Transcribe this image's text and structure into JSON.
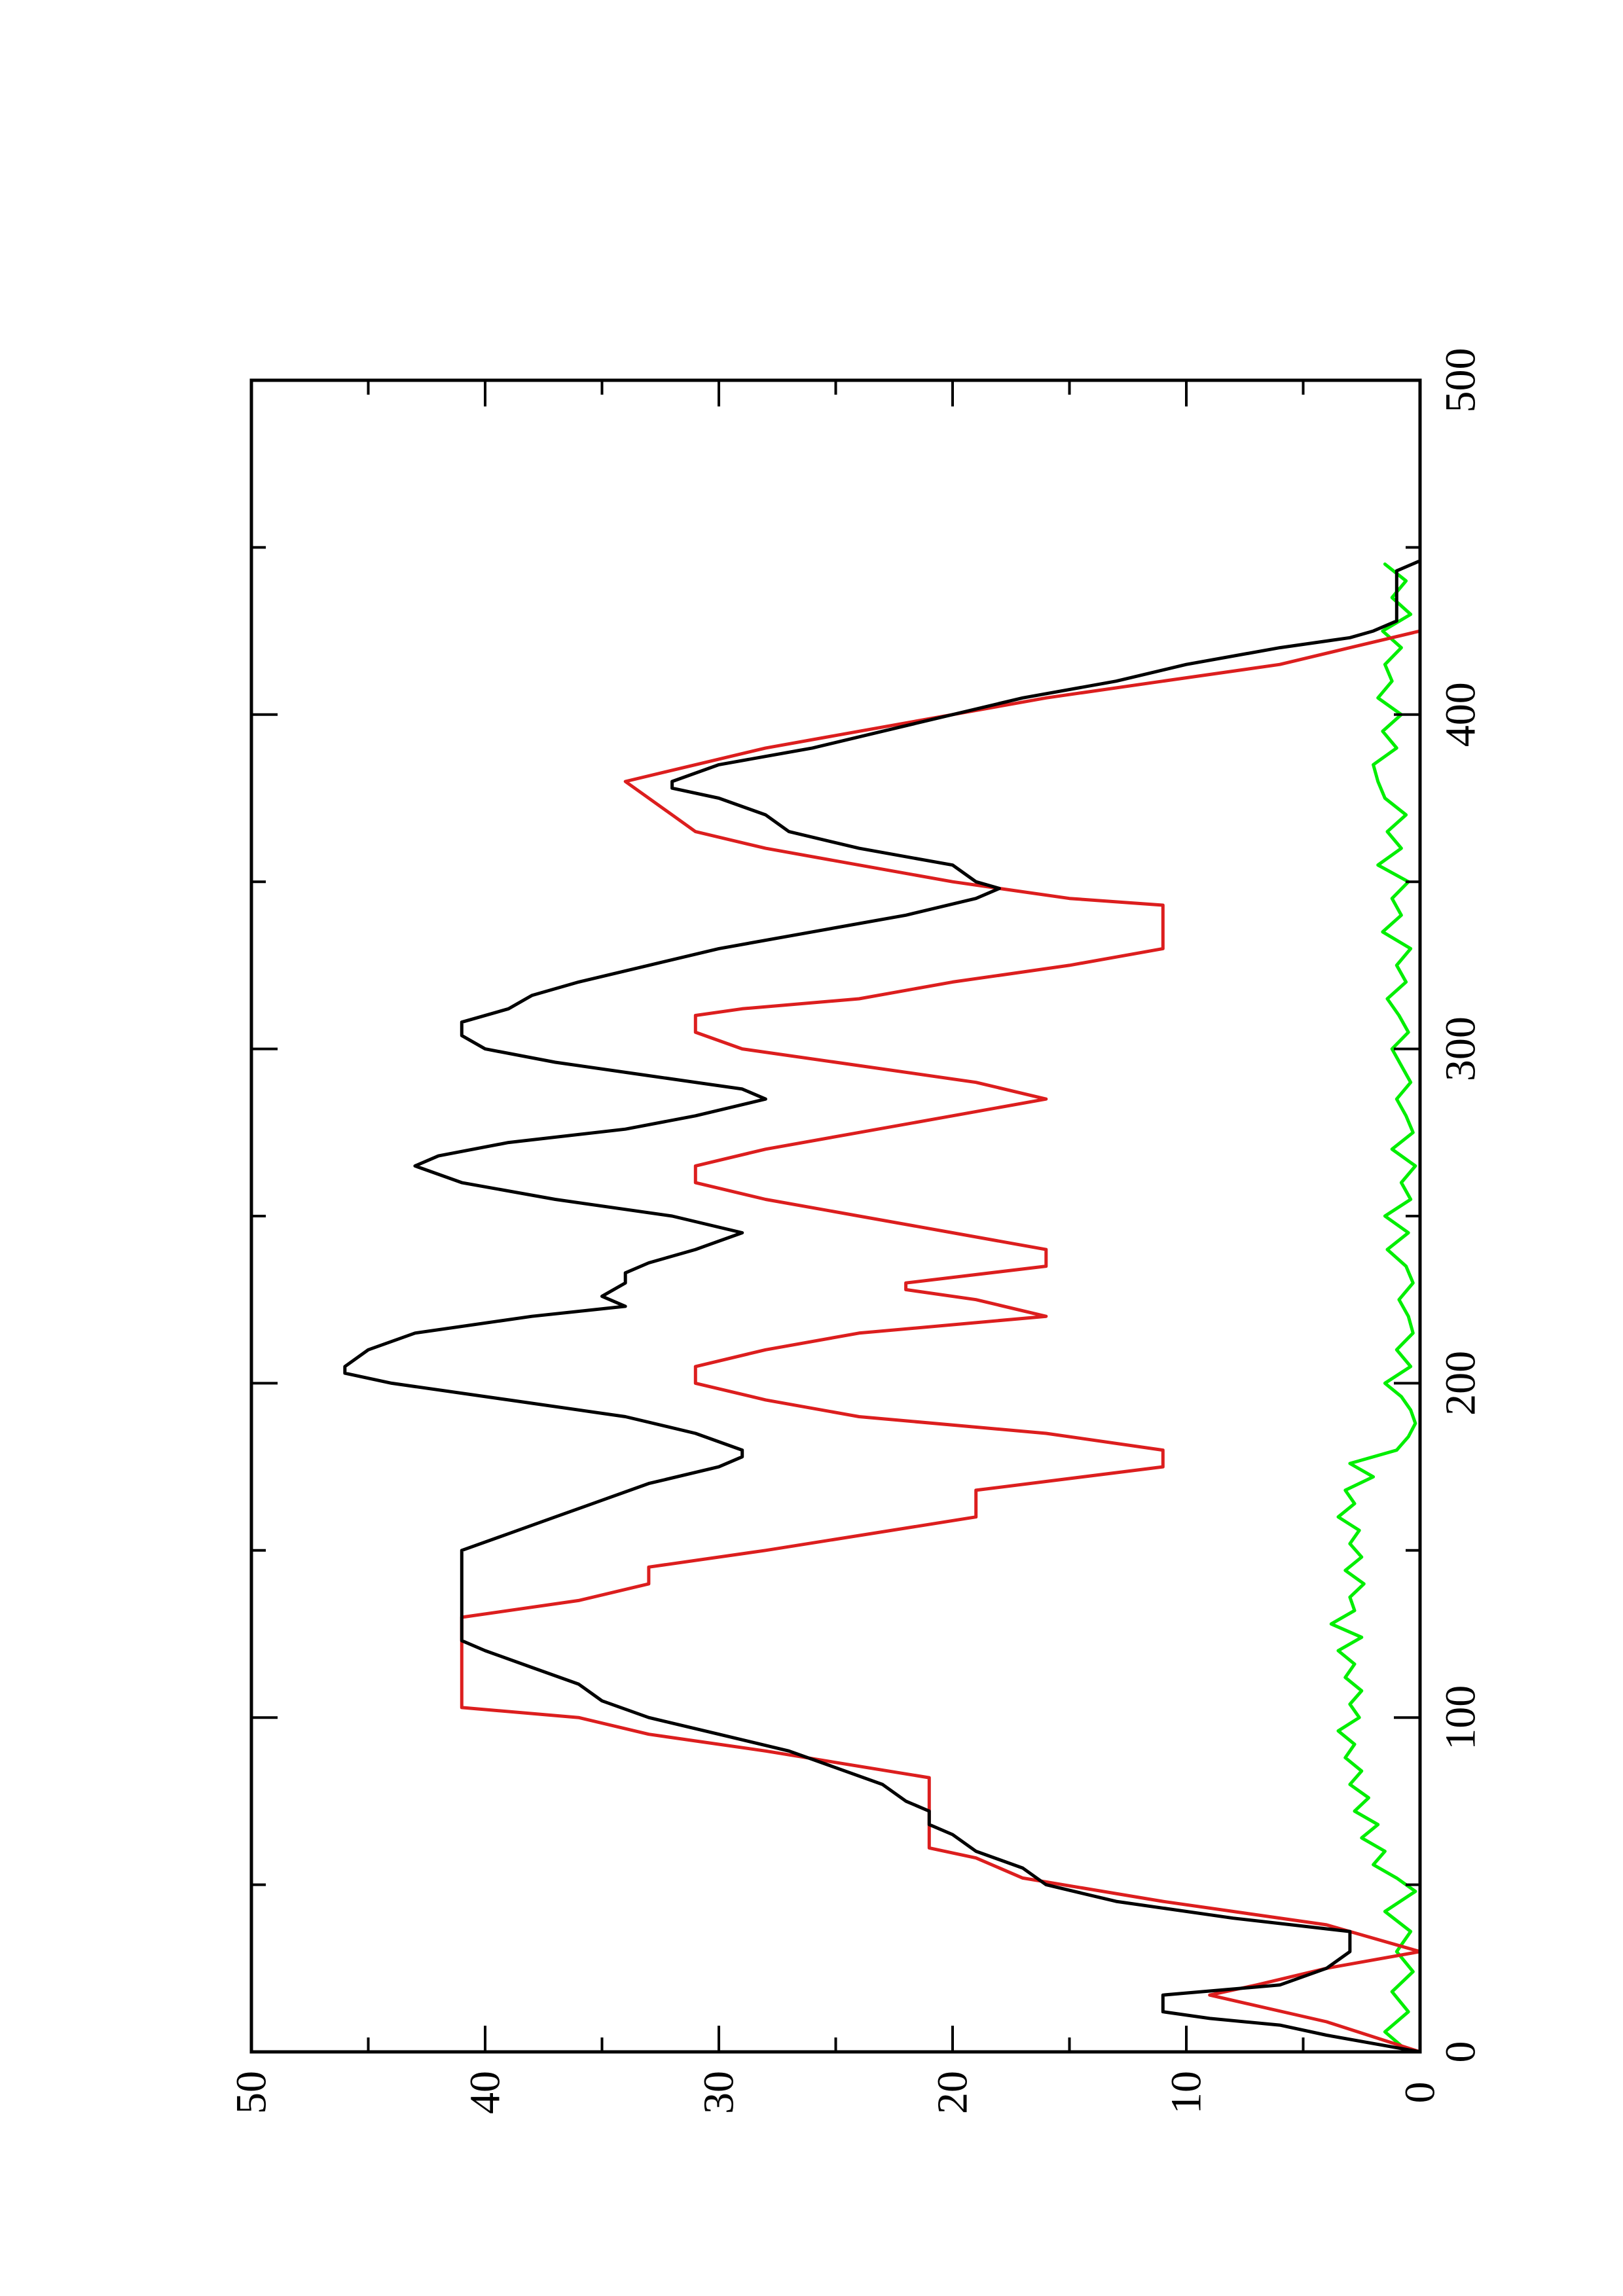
{
  "chart_data": {
    "type": "line",
    "orientation": "rotated-90-ccw",
    "title": "",
    "xlabel": "",
    "ylabel": "",
    "xlim": [
      0,
      500
    ],
    "ylim": [
      0,
      50
    ],
    "x_ticks": [
      "0",
      "100",
      "200",
      "300",
      "400",
      "500"
    ],
    "y_ticks": [
      "0",
      "10",
      "20",
      "30",
      "40",
      "50"
    ],
    "grid": false,
    "legend": "none",
    "series": [
      {
        "color": "#000000",
        "x": [
          0,
          5,
          8,
          10,
          12,
          17,
          20,
          25,
          30,
          33,
          36,
          40,
          45,
          50,
          55,
          60,
          65,
          68,
          72,
          75,
          80,
          85,
          90,
          95,
          100,
          105,
          110,
          115,
          120,
          123,
          126,
          130,
          133,
          136,
          140,
          145,
          150,
          155,
          160,
          165,
          170,
          175,
          178,
          180,
          185,
          190,
          195,
          200,
          203,
          205,
          210,
          215,
          220,
          223,
          226,
          230,
          233,
          236,
          240,
          245,
          250,
          255,
          260,
          265,
          268,
          272,
          276,
          280,
          285,
          288,
          292,
          296,
          300,
          304,
          308,
          312,
          316,
          320,
          325,
          330,
          335,
          340,
          345,
          348,
          350,
          355,
          360,
          365,
          370,
          375,
          378,
          380,
          385,
          390,
          395,
          400,
          405,
          410,
          415,
          420,
          423,
          425,
          428,
          432,
          436,
          440,
          443,
          446,
          450
        ],
        "y": [
          0,
          4,
          6,
          9,
          11,
          11,
          6,
          4,
          3,
          3,
          3,
          8,
          13,
          16,
          17,
          19,
          20,
          21,
          21,
          22,
          23,
          25,
          27,
          30,
          33,
          35,
          36,
          38,
          40,
          41,
          41,
          41,
          41,
          41,
          41,
          41,
          41,
          39,
          37,
          35,
          33,
          30,
          29,
          29,
          31,
          34,
          39,
          44,
          46,
          46,
          45,
          43,
          38,
          34,
          35,
          34,
          34,
          33,
          31,
          29,
          32,
          37,
          41,
          43,
          42,
          39,
          34,
          31,
          28,
          29,
          33,
          37,
          40,
          41,
          41,
          39,
          38,
          36,
          33,
          30,
          26,
          22,
          19,
          18,
          19,
          20,
          24,
          27,
          28,
          30,
          32,
          32,
          30,
          26,
          23,
          20,
          17,
          13,
          10,
          6,
          3,
          2,
          1,
          1,
          1,
          1,
          1,
          0,
          0
        ]
      },
      {
        "color": "#dc1e1e",
        "x": [
          0,
          9,
          17,
          20,
          25,
          30,
          38,
          45,
          52,
          58,
          61,
          65,
          70,
          70,
          80,
          82,
          90,
          95,
          100,
          103,
          130,
          135,
          140,
          145,
          150,
          160,
          168,
          175,
          180,
          185,
          190,
          195,
          200,
          205,
          210,
          215,
          220,
          225,
          228,
          230,
          235,
          240,
          245,
          250,
          255,
          260,
          265,
          270,
          275,
          280,
          285,
          290,
          295,
          300,
          305,
          310,
          312,
          315,
          320,
          325,
          330,
          335,
          340,
          343,
          345,
          350,
          355,
          360,
          365,
          370,
          375,
          380,
          385,
          390,
          395,
          400,
          405,
          410,
          415,
          420,
          425
        ],
        "y": [
          0,
          4,
          9,
          7,
          4,
          0,
          4,
          11,
          17,
          19,
          21,
          21,
          21,
          21,
          21,
          21,
          28,
          33,
          36,
          41,
          41,
          36,
          33,
          33,
          28,
          19,
          19,
          11,
          11,
          16,
          24,
          28,
          31,
          31,
          28,
          24,
          16,
          19,
          22,
          22,
          16,
          16,
          20,
          24,
          28,
          31,
          31,
          28,
          24,
          20,
          16,
          19,
          24,
          29,
          31,
          31,
          29,
          24,
          20,
          15,
          11,
          11,
          11,
          11,
          15,
          20,
          24,
          28,
          31,
          32,
          33,
          34,
          31,
          28,
          24,
          20,
          16,
          11,
          6,
          3,
          0
        ]
      },
      {
        "color": "#00ee00",
        "x": [
          0,
          6,
          12,
          18,
          24,
          30,
          36,
          42,
          48,
          52,
          56,
          60,
          64,
          68,
          72,
          76,
          80,
          84,
          88,
          92,
          96,
          100,
          104,
          108,
          112,
          116,
          120,
          124,
          128,
          132,
          136,
          140,
          144,
          148,
          152,
          156,
          160,
          164,
          168,
          172,
          176,
          180,
          184,
          188,
          192,
          196,
          200,
          205,
          210,
          215,
          220,
          225,
          230,
          235,
          240,
          245,
          250,
          255,
          260,
          265,
          270,
          275,
          280,
          285,
          290,
          295,
          300,
          305,
          310,
          315,
          320,
          325,
          330,
          335,
          340,
          345,
          350,
          355,
          360,
          365,
          370,
          375,
          380,
          385,
          390,
          395,
          400,
          405,
          410,
          415,
          420,
          425,
          430,
          435,
          440,
          445
        ],
        "y": [
          0.5,
          1.5,
          0.5,
          1.2,
          0.3,
          1.0,
          0.4,
          1.5,
          0.2,
          1.0,
          2.0,
          1.5,
          2.5,
          1.8,
          2.8,
          2.2,
          3.0,
          2.5,
          3.2,
          2.8,
          3.5,
          2.6,
          3.0,
          2.5,
          3.2,
          2.8,
          3.5,
          2.5,
          3.8,
          2.8,
          3.0,
          2.4,
          3.2,
          2.5,
          3.0,
          2.6,
          3.5,
          2.8,
          3.2,
          2.0,
          3.0,
          1.0,
          0.5,
          0.2,
          0.4,
          0.8,
          1.5,
          0.4,
          1.0,
          0.3,
          0.5,
          0.9,
          0.3,
          0.6,
          1.4,
          0.5,
          1.5,
          0.4,
          0.8,
          0.2,
          1.2,
          0.3,
          0.6,
          1.0,
          0.4,
          0.8,
          1.2,
          0.5,
          0.9,
          1.4,
          0.6,
          1.0,
          0.4,
          1.6,
          0.8,
          1.2,
          0.5,
          1.8,
          0.8,
          1.4,
          0.6,
          1.5,
          1.8,
          2.0,
          1.0,
          1.6,
          0.8,
          1.8,
          1.2,
          1.5,
          0.8,
          1.6,
          0.4,
          1.2,
          0.6,
          1.5
        ]
      }
    ]
  }
}
